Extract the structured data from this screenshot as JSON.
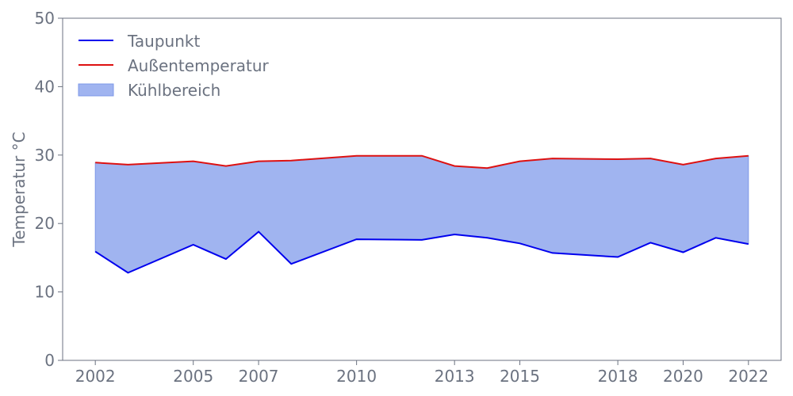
{
  "chart_data": {
    "type": "area",
    "title": "",
    "xlabel": "",
    "ylabel": "Temperatur °C",
    "xlim": [
      2001,
      2023
    ],
    "ylim": [
      0,
      50
    ],
    "x_ticks": [
      2002,
      2005,
      2007,
      2010,
      2013,
      2015,
      2018,
      2020,
      2022
    ],
    "y_ticks": [
      0,
      10,
      20,
      30,
      40,
      50
    ],
    "grid": false,
    "legend_position": "top-left",
    "x": [
      2002,
      2003,
      2005,
      2006,
      2007,
      2008,
      2010,
      2012,
      2013,
      2014,
      2015,
      2016,
      2018,
      2019,
      2020,
      2021,
      2022
    ],
    "series": [
      {
        "name": "Taupunkt",
        "color": "#0000ee",
        "values": [
          15.9,
          12.8,
          16.9,
          14.8,
          18.8,
          14.1,
          17.7,
          17.6,
          18.4,
          17.9,
          17.1,
          15.7,
          15.1,
          17.2,
          15.8,
          17.9,
          17.0
        ]
      },
      {
        "name": "Außentemperatur",
        "color": "#dd1111",
        "values": [
          28.9,
          28.6,
          29.1,
          28.4,
          29.1,
          29.2,
          29.9,
          29.9,
          28.4,
          28.1,
          29.1,
          29.5,
          29.4,
          29.5,
          28.6,
          29.5,
          29.9
        ]
      }
    ],
    "fill": {
      "name": "Kühlbereich",
      "color": "#a0b4f0",
      "edge_color": "#7e98e8"
    }
  }
}
